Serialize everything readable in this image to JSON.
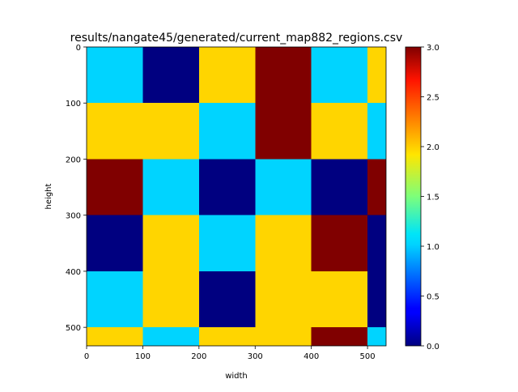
{
  "chart_data": {
    "type": "heatmap",
    "title": "results/nangate45/generated/current_map882_regions.csv",
    "xlabel": "width",
    "ylabel": "height",
    "colormap": "jet",
    "xlim": [
      0,
      533
    ],
    "ylim": [
      533,
      0
    ],
    "x_ticks": [
      "0",
      "100",
      "200",
      "300",
      "400",
      "500"
    ],
    "y_ticks": [
      "0",
      "100",
      "200",
      "300",
      "400",
      "500"
    ],
    "x_edges": [
      0,
      100,
      200,
      300,
      400,
      500,
      533
    ],
    "y_edges": [
      0,
      100,
      200,
      300,
      400,
      500,
      533
    ],
    "values": [
      [
        1,
        0,
        2,
        3,
        1,
        2
      ],
      [
        2,
        2,
        1,
        3,
        2,
        1
      ],
      [
        3,
        1,
        0,
        1,
        0,
        3
      ],
      [
        0,
        2,
        1,
        2,
        3,
        0
      ],
      [
        1,
        2,
        0,
        2,
        2,
        0
      ],
      [
        2,
        1,
        2,
        2,
        3,
        1
      ]
    ],
    "colorbar": {
      "min": 0,
      "max": 3,
      "ticks": [
        "0.0",
        "0.5",
        "1.0",
        "1.5",
        "2.0",
        "2.5",
        "3.0"
      ]
    }
  }
}
